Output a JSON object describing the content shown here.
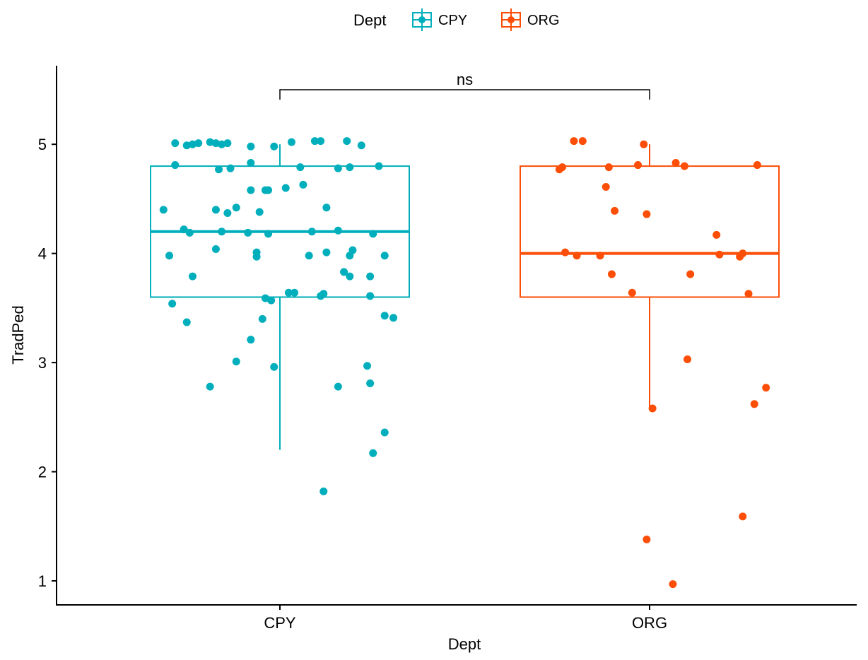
{
  "chart_data": {
    "type": "box",
    "xlabel": "Dept",
    "ylabel": "TradPed",
    "ylim": [
      0.78,
      5.72
    ],
    "yticks": [
      1,
      2,
      3,
      4,
      5
    ],
    "grid": false,
    "legend": {
      "title": "Dept",
      "position": "top"
    },
    "categories": [
      "CPY",
      "ORG"
    ],
    "comparison": {
      "groups": [
        "CPY",
        "ORG"
      ],
      "label": "ns",
      "y": 5.5
    },
    "series": [
      {
        "name": "CPY",
        "color": "#00AFBB",
        "box": {
          "min": 2.2,
          "q1": 3.6,
          "median": 4.2,
          "q3": 4.8,
          "max": 5.0
        },
        "points": [
          [
            -0.36,
            5.01
          ],
          [
            -0.32,
            4.99
          ],
          [
            -0.3,
            5.0
          ],
          [
            -0.28,
            5.01
          ],
          [
            -0.24,
            5.02
          ],
          [
            -0.22,
            5.01
          ],
          [
            -0.2,
            5.0
          ],
          [
            -0.18,
            5.01
          ],
          [
            -0.1,
            4.98
          ],
          [
            -0.02,
            4.98
          ],
          [
            0.04,
            5.02
          ],
          [
            0.12,
            5.03
          ],
          [
            0.14,
            5.03
          ],
          [
            0.23,
            5.03
          ],
          [
            0.28,
            4.99
          ],
          [
            -0.36,
            4.81
          ],
          [
            -0.21,
            4.77
          ],
          [
            -0.17,
            4.78
          ],
          [
            -0.1,
            4.83
          ],
          [
            0.07,
            4.79
          ],
          [
            0.2,
            4.78
          ],
          [
            0.24,
            4.79
          ],
          [
            0.34,
            4.8
          ],
          [
            -0.1,
            4.58
          ],
          [
            -0.05,
            4.58
          ],
          [
            -0.04,
            4.58
          ],
          [
            0.02,
            4.6
          ],
          [
            0.08,
            4.63
          ],
          [
            -0.4,
            4.4
          ],
          [
            -0.22,
            4.4
          ],
          [
            -0.18,
            4.37
          ],
          [
            -0.15,
            4.42
          ],
          [
            -0.07,
            4.38
          ],
          [
            0.16,
            4.42
          ],
          [
            -0.33,
            4.22
          ],
          [
            -0.31,
            4.19
          ],
          [
            -0.2,
            4.2
          ],
          [
            -0.11,
            4.19
          ],
          [
            -0.04,
            4.18
          ],
          [
            0.11,
            4.2
          ],
          [
            0.2,
            4.21
          ],
          [
            0.32,
            4.18
          ],
          [
            -0.38,
            3.98
          ],
          [
            -0.22,
            4.04
          ],
          [
            -0.08,
            4.01
          ],
          [
            -0.08,
            3.97
          ],
          [
            0.1,
            3.98
          ],
          [
            0.16,
            4.01
          ],
          [
            0.25,
            4.03
          ],
          [
            0.24,
            3.98
          ],
          [
            0.36,
            3.98
          ],
          [
            -0.3,
            3.79
          ],
          [
            0.22,
            3.83
          ],
          [
            0.24,
            3.79
          ],
          [
            0.31,
            3.79
          ],
          [
            -0.05,
            3.59
          ],
          [
            -0.03,
            3.57
          ],
          [
            0.03,
            3.64
          ],
          [
            0.05,
            3.64
          ],
          [
            0.14,
            3.61
          ],
          [
            0.15,
            3.63
          ],
          [
            0.31,
            3.61
          ],
          [
            -0.37,
            3.54
          ],
          [
            -0.32,
            3.37
          ],
          [
            -0.06,
            3.4
          ],
          [
            -0.1,
            3.21
          ],
          [
            -0.15,
            3.01
          ],
          [
            -0.02,
            2.96
          ],
          [
            0.36,
            3.43
          ],
          [
            0.39,
            3.41
          ],
          [
            0.3,
            2.97
          ],
          [
            0.31,
            2.81
          ],
          [
            0.2,
            2.78
          ],
          [
            -0.24,
            2.78
          ],
          [
            0.36,
            2.36
          ],
          [
            0.32,
            2.17
          ],
          [
            0.15,
            1.82
          ]
        ]
      },
      {
        "name": "ORG",
        "color": "#FC4E07",
        "box": {
          "min": 2.58,
          "q1": 3.6,
          "median": 4.0,
          "q3": 4.8,
          "max": 5.0
        },
        "points": [
          [
            -0.26,
            5.03
          ],
          [
            -0.23,
            5.03
          ],
          [
            -0.02,
            5.0
          ],
          [
            -0.31,
            4.77
          ],
          [
            -0.3,
            4.79
          ],
          [
            -0.14,
            4.79
          ],
          [
            -0.04,
            4.81
          ],
          [
            0.09,
            4.83
          ],
          [
            0.12,
            4.8
          ],
          [
            0.37,
            4.81
          ],
          [
            -0.15,
            4.61
          ],
          [
            -0.12,
            4.39
          ],
          [
            -0.01,
            4.36
          ],
          [
            0.23,
            4.17
          ],
          [
            -0.29,
            4.01
          ],
          [
            -0.25,
            3.98
          ],
          [
            -0.17,
            3.98
          ],
          [
            0.24,
            3.99
          ],
          [
            0.31,
            3.97
          ],
          [
            0.32,
            4.0
          ],
          [
            -0.13,
            3.81
          ],
          [
            0.14,
            3.81
          ],
          [
            -0.06,
            3.64
          ],
          [
            0.34,
            3.63
          ],
          [
            0.13,
            3.03
          ],
          [
            0.4,
            2.77
          ],
          [
            0.36,
            2.62
          ],
          [
            0.01,
            2.58
          ],
          [
            0.32,
            1.59
          ],
          [
            -0.01,
            1.38
          ],
          [
            0.08,
            0.97
          ]
        ]
      }
    ]
  }
}
